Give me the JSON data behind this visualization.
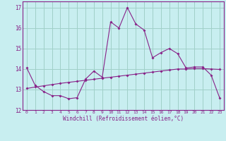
{
  "xlabel": "Windchill (Refroidissement éolien,°C)",
  "background_color": "#c8eef0",
  "grid_color": "#a0d0c8",
  "line_color": "#882288",
  "xlim": [
    -0.5,
    23.5
  ],
  "ylim": [
    12,
    17.3
  ],
  "xticks": [
    0,
    1,
    2,
    3,
    4,
    5,
    6,
    7,
    8,
    9,
    10,
    11,
    12,
    13,
    14,
    15,
    16,
    17,
    18,
    19,
    20,
    21,
    22,
    23
  ],
  "yticks": [
    12,
    13,
    14,
    15,
    16,
    17
  ],
  "hours": [
    0,
    1,
    2,
    3,
    4,
    5,
    6,
    7,
    8,
    9,
    10,
    11,
    12,
    13,
    14,
    15,
    16,
    17,
    18,
    19,
    20,
    21,
    22,
    23
  ],
  "windchill": [
    14.05,
    13.2,
    12.9,
    12.7,
    12.7,
    12.55,
    12.6,
    13.5,
    13.9,
    13.6,
    16.3,
    16.0,
    17.0,
    16.2,
    15.9,
    14.55,
    14.8,
    15.0,
    14.75,
    14.05,
    14.1,
    14.1,
    13.7,
    12.6
  ],
  "trend": [
    13.05,
    13.12,
    13.18,
    13.24,
    13.3,
    13.35,
    13.4,
    13.45,
    13.5,
    13.55,
    13.6,
    13.65,
    13.7,
    13.75,
    13.8,
    13.85,
    13.9,
    13.95,
    14.0,
    14.0,
    14.02,
    14.02,
    14.0,
    13.98
  ]
}
